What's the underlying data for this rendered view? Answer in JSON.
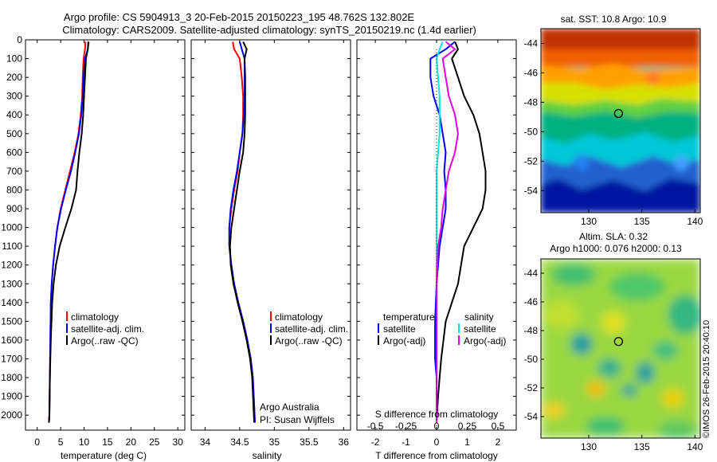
{
  "title": {
    "line1": "Argo profile: CS 5904913_3 20-Feb-2015 20150223_195 48.762S 132.802E",
    "line2": "Climatology: CARS2009. Satellite-adjusted climatology: synTS_20150219.nc (1.4d earlier)"
  },
  "colors": {
    "climatology": "#ff0000",
    "satellite": "#0000ff",
    "argo": "#000000",
    "satellite_s": "#00e5e5",
    "argo_s": "#e000e0"
  },
  "depth_ticks": [
    "0",
    "100",
    "200",
    "300",
    "400",
    "500",
    "600",
    "700",
    "800",
    "900",
    "1000",
    "1100",
    "1200",
    "1300",
    "1400",
    "1500",
    "1600",
    "1700",
    "1800",
    "1900",
    "2000"
  ],
  "legend": {
    "climatology": "climatology",
    "satellite": "satellite-adj. clim.",
    "argo": "Argo(..raw -QC)"
  },
  "diff_legend": {
    "temperature": "temperature",
    "salinity": "salinity",
    "satellite": "satellite",
    "argo": "Argo(-adj)"
  },
  "credits": {
    "line1": "Argo Australia",
    "line2": "PI: Susan Wijffels"
  },
  "sst_map": {
    "title": "sat. SST: 10.8 Argo: 10.9",
    "y_ticks": [
      "-44",
      "-46",
      "-48",
      "-50",
      "-52",
      "-54"
    ],
    "x_ticks": [
      "130",
      "135",
      "140"
    ]
  },
  "sla_map": {
    "title1": "Altim. SLA: 0.32",
    "title2": "Argo h1000: 0.076 h2000: 0.13",
    "y_ticks": [
      "-44",
      "-46",
      "-48",
      "-50",
      "-52",
      "-54"
    ],
    "x_ticks": [
      "130",
      "135",
      "140"
    ]
  },
  "stamp": "©IMOS 26-Feb-2015 20:40:10",
  "chart_data": [
    {
      "type": "line",
      "name": "temperature",
      "xlabel": "temperature (deg C)",
      "x_ticks": [
        "0",
        "5",
        "10",
        "15",
        "20",
        "25",
        "30"
      ],
      "xlim": [
        -2.5,
        31.5
      ],
      "ylim": [
        2080,
        0
      ],
      "series": [
        {
          "name": "climatology",
          "color": "#ff0000",
          "x": [
            10.3,
            10.2,
            9.9,
            9.7,
            9.6,
            9.3,
            8.8,
            8.0,
            7.0,
            6.0,
            5.0,
            4.3,
            3.8,
            3.4,
            3.1,
            2.9,
            2.8,
            2.7,
            2.6,
            2.5
          ],
          "y": [
            10,
            50,
            100,
            200,
            300,
            400,
            500,
            600,
            700,
            800,
            900,
            1000,
            1100,
            1200,
            1300,
            1400,
            1600,
            1800,
            2000,
            2040
          ]
        },
        {
          "name": "satellite-adj. clim.",
          "color": "#0000ff",
          "x": [
            11.0,
            10.8,
            10.2,
            9.9,
            9.7,
            9.4,
            8.9,
            8.1,
            7.2,
            6.1,
            5.1,
            4.3,
            3.8,
            3.4,
            3.1,
            2.9,
            2.8,
            2.7,
            2.6,
            2.5
          ],
          "y": [
            10,
            50,
            100,
            200,
            300,
            400,
            500,
            600,
            700,
            800,
            900,
            1000,
            1100,
            1200,
            1300,
            1400,
            1600,
            1800,
            2000,
            2040
          ]
        },
        {
          "name": "Argo(..raw -QC)",
          "color": "#000000",
          "x": [
            10.9,
            10.8,
            10.4,
            10.2,
            10.0,
            9.8,
            9.5,
            9.0,
            8.6,
            8.3,
            7.3,
            6.0,
            4.8,
            4.0,
            3.5,
            3.2,
            2.9,
            2.7,
            2.6,
            2.5
          ],
          "y": [
            10,
            50,
            100,
            200,
            300,
            400,
            500,
            600,
            700,
            800,
            900,
            1000,
            1100,
            1200,
            1300,
            1400,
            1600,
            1800,
            2000,
            2040
          ]
        }
      ]
    },
    {
      "type": "line",
      "name": "salinity",
      "xlabel": "salinity",
      "x_ticks": [
        "34",
        "34.5",
        "35",
        "35.5",
        "36"
      ],
      "xlim": [
        33.8,
        36.1
      ],
      "ylim": [
        2080,
        0
      ],
      "series": [
        {
          "name": "climatology",
          "color": "#ff0000",
          "x": [
            34.4,
            34.42,
            34.5,
            34.53,
            34.55,
            34.55,
            34.54,
            34.5,
            34.47,
            34.42,
            34.38,
            34.35,
            34.35,
            34.38,
            34.42,
            34.48,
            34.55,
            34.61,
            34.66,
            34.69,
            34.72
          ],
          "y": [
            10,
            50,
            100,
            200,
            300,
            400,
            500,
            600,
            700,
            800,
            900,
            1000,
            1100,
            1200,
            1300,
            1400,
            1500,
            1600,
            1700,
            1800,
            2040
          ]
        },
        {
          "name": "satellite-adj. clim.",
          "color": "#0000ff",
          "x": [
            34.5,
            34.53,
            34.57,
            34.57,
            34.57,
            34.56,
            34.54,
            34.5,
            34.46,
            34.41,
            34.37,
            34.35,
            34.35,
            34.38,
            34.42,
            34.48,
            34.55,
            34.61,
            34.66,
            34.69,
            34.72
          ],
          "y": [
            10,
            50,
            100,
            200,
            300,
            400,
            500,
            600,
            700,
            800,
            900,
            1000,
            1100,
            1200,
            1300,
            1400,
            1500,
            1600,
            1700,
            1800,
            2040
          ]
        },
        {
          "name": "Argo(..raw -QC)",
          "color": "#000000",
          "x": [
            34.55,
            34.6,
            34.57,
            34.58,
            34.58,
            34.58,
            34.57,
            34.55,
            34.5,
            34.46,
            34.42,
            34.38,
            34.36,
            34.37,
            34.41,
            34.47,
            34.54,
            34.6,
            34.65,
            34.68,
            34.71
          ],
          "y": [
            10,
            50,
            100,
            200,
            300,
            400,
            500,
            600,
            700,
            800,
            900,
            1000,
            1100,
            1200,
            1300,
            1400,
            1500,
            1600,
            1700,
            1800,
            2040
          ]
        }
      ]
    },
    {
      "type": "line",
      "name": "difference",
      "xlabel": "T difference from climatology",
      "x2label": "S difference from climatology",
      "x_ticks": [
        "-2",
        "-1",
        "0",
        "1",
        "2"
      ],
      "x2_ticks": [
        "-0.5",
        "-0.25",
        "0",
        "0.25",
        "0.5"
      ],
      "xlim": [
        -2.6,
        2.6
      ],
      "ylim": [
        2080,
        0
      ],
      "series": [
        {
          "name": "temperature satellite",
          "color": "#0000ff",
          "x": [
            0.6,
            0.3,
            -0.2,
            -0.2,
            -0.1,
            0.1,
            0.2,
            0.3,
            0.25,
            0.3,
            0.3,
            0.2,
            0.1,
            0.0,
            -0.05,
            -0.05,
            0.0,
            0.0,
            0.0
          ],
          "y": [
            10,
            50,
            100,
            200,
            300,
            400,
            500,
            600,
            700,
            800,
            900,
            1000,
            1100,
            1300,
            1500,
            1700,
            1800,
            1900,
            2040
          ]
        },
        {
          "name": "temperature Argo(-adj)",
          "color": "#000000",
          "x": [
            0.6,
            0.7,
            0.5,
            0.7,
            0.9,
            1.2,
            1.4,
            1.5,
            1.6,
            1.6,
            1.5,
            1.2,
            0.9,
            0.7,
            0.3,
            0.15,
            0.1,
            0.05,
            0.0
          ],
          "y": [
            10,
            50,
            100,
            200,
            300,
            400,
            500,
            600,
            700,
            800,
            900,
            1000,
            1100,
            1300,
            1500,
            1700,
            1800,
            1900,
            2040
          ]
        },
        {
          "name": "salinity satellite",
          "color": "#00e5e5",
          "x": [
            0.2,
            0.1,
            0.0,
            0.05,
            0.1,
            0.1,
            0.1,
            0.05,
            0.0,
            0.0,
            0.0,
            0.0,
            0.0,
            0.0,
            0.0,
            0.0,
            0.0,
            0.0,
            0.0
          ],
          "y": [
            10,
            50,
            100,
            200,
            300,
            400,
            500,
            600,
            700,
            800,
            900,
            1000,
            1100,
            1300,
            1500,
            1700,
            1800,
            1900,
            2040
          ]
        },
        {
          "name": "salinity Argo(-adj)",
          "color": "#e000e0",
          "x": [
            0.3,
            0.6,
            0.2,
            0.3,
            0.4,
            0.6,
            0.7,
            0.6,
            0.4,
            0.3,
            0.2,
            0.15,
            0.05,
            0.0,
            0.0,
            0.0,
            0.0,
            0.0,
            0.0
          ],
          "y": [
            10,
            50,
            100,
            200,
            300,
            400,
            500,
            600,
            700,
            800,
            900,
            1000,
            1100,
            1300,
            1500,
            1700,
            1800,
            1900,
            2040
          ]
        }
      ]
    },
    {
      "type": "heatmap",
      "name": "sat. SST map",
      "x_ticks": [
        "130",
        "135",
        "140"
      ],
      "y_ticks": [
        "-44",
        "-46",
        "-48",
        "-50",
        "-52",
        "-54"
      ],
      "xlim": [
        125.5,
        140.5
      ],
      "ylim": [
        -55.5,
        -43
      ],
      "marker": {
        "lon": 132.802,
        "lat": -48.762
      }
    },
    {
      "type": "heatmap",
      "name": "Altim. SLA map",
      "x_ticks": [
        "130",
        "135",
        "140"
      ],
      "y_ticks": [
        "-44",
        "-46",
        "-48",
        "-50",
        "-52",
        "-54"
      ],
      "xlim": [
        125.5,
        140.5
      ],
      "ylim": [
        -55.5,
        -43
      ],
      "marker": {
        "lon": 132.802,
        "lat": -48.762
      }
    }
  ]
}
